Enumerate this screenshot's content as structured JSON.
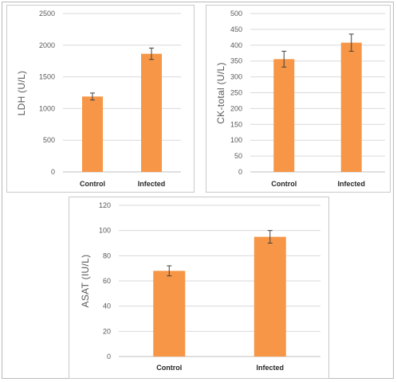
{
  "chart_data": [
    {
      "type": "bar",
      "categories": [
        "Control",
        "Infected"
      ],
      "values": [
        1190,
        1865
      ],
      "errors": [
        55,
        90
      ],
      "ylabel": "LDH (U/L)",
      "ylim": [
        0,
        2500
      ],
      "yticks": [
        0,
        500,
        1000,
        1500,
        2000,
        2500
      ],
      "grid": true,
      "bar_color": "#f79646"
    },
    {
      "type": "bar",
      "categories": [
        "Control",
        "Infected"
      ],
      "values": [
        356,
        408
      ],
      "errors": [
        25,
        27
      ],
      "ylabel": "CK-total (U/L)",
      "ylim": [
        0,
        500
      ],
      "yticks": [
        0,
        50,
        100,
        150,
        200,
        250,
        300,
        350,
        400,
        450,
        500
      ],
      "grid": true,
      "bar_color": "#f79646"
    },
    {
      "type": "bar",
      "categories": [
        "Control",
        "Infected"
      ],
      "values": [
        68,
        95
      ],
      "errors": [
        4,
        5
      ],
      "ylabel": "ASAT (IU/L)",
      "ylim": [
        0,
        120
      ],
      "yticks": [
        0,
        20,
        40,
        60,
        80,
        100,
        120
      ],
      "grid": true,
      "bar_color": "#f79646"
    }
  ]
}
